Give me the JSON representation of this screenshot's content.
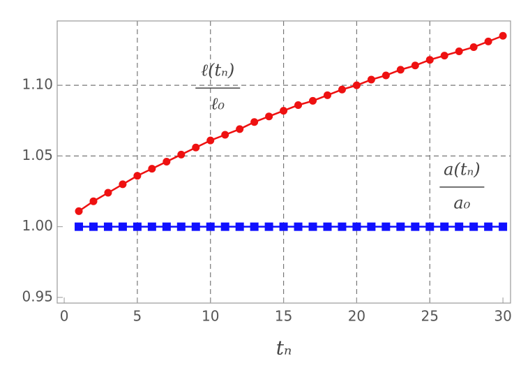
{
  "chart_data": {
    "type": "line",
    "x": [
      1,
      2,
      3,
      4,
      5,
      6,
      7,
      8,
      9,
      10,
      11,
      12,
      13,
      14,
      15,
      16,
      17,
      18,
      19,
      20,
      21,
      22,
      23,
      24,
      25,
      26,
      27,
      28,
      29,
      30
    ],
    "series": [
      {
        "name": "ℓ(tₙ)/ℓ₀",
        "color": "#ee1111",
        "marker": "circle",
        "values": [
          1.011,
          1.018,
          1.024,
          1.03,
          1.036,
          1.041,
          1.046,
          1.051,
          1.056,
          1.061,
          1.065,
          1.069,
          1.074,
          1.078,
          1.082,
          1.086,
          1.089,
          1.093,
          1.097,
          1.1,
          1.104,
          1.107,
          1.111,
          1.114,
          1.118,
          1.121,
          1.124,
          1.127,
          1.131,
          1.135
        ]
      },
      {
        "name": "a(tₙ)/a₀",
        "color": "#1010ff",
        "marker": "square",
        "values": [
          1,
          1,
          1,
          1,
          1,
          1,
          1,
          1,
          1,
          1,
          1,
          1,
          1,
          1,
          1,
          1,
          1,
          1,
          1,
          1,
          1,
          1,
          1,
          1,
          1,
          1,
          1,
          1,
          1,
          1
        ]
      }
    ],
    "xlabel": "tₙ",
    "annotations": [
      {
        "numerator": "ℓ(tₙ)",
        "denominator": "ℓ₀",
        "x": 10.5,
        "y": 1.1
      },
      {
        "numerator": "a(tₙ)",
        "denominator": "a₀",
        "x": 27.2,
        "y": 1.03
      }
    ],
    "xlim": [
      -0.48,
      30.52
    ],
    "ylim": [
      0.946,
      1.1455
    ],
    "xticks": [
      0,
      5,
      10,
      15,
      20,
      25,
      30
    ],
    "yticks": [
      0.95,
      {
        "value": 1.0,
        "label": "1.00"
      },
      1.05,
      {
        "value": 1.1,
        "label": "1.10"
      }
    ],
    "xgrid": [
      5,
      10,
      15,
      20,
      25
    ],
    "ygrid": [
      1.05,
      1.1
    ],
    "grid_color": "#777"
  }
}
